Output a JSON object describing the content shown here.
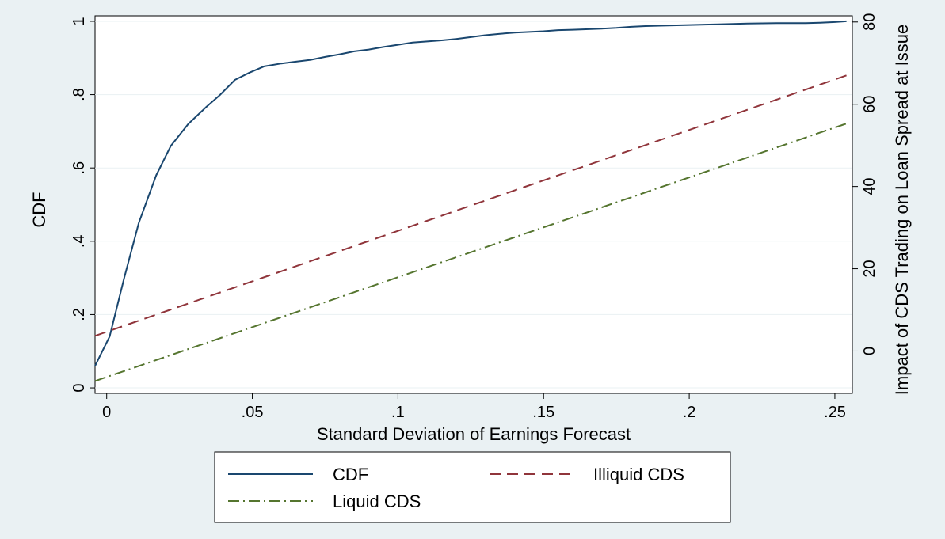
{
  "chart_data": {
    "type": "line",
    "title": "",
    "xlabel": "Standard Deviation of Earnings Forecast",
    "ylabel_left": "CDF",
    "ylabel_right": "Impact of CDS Trading on Loan Spread at Issue",
    "xlim": [
      -0.004,
      0.256
    ],
    "ylim_left": [
      -0.015,
      1.015
    ],
    "ylim_right": [
      -10.3,
      81.5
    ],
    "x_ticks": [
      0,
      0.05,
      0.1,
      0.15,
      0.2,
      0.25
    ],
    "x_tick_labels": [
      "0",
      ".05",
      ".1",
      ".15",
      ".2",
      ".25"
    ],
    "y_left_ticks": [
      0,
      0.2,
      0.4,
      0.6,
      0.8,
      1
    ],
    "y_left_tick_labels": [
      "0",
      ".2",
      ".4",
      ".6",
      ".8",
      "1"
    ],
    "y_right_ticks": [
      0,
      20,
      40,
      60,
      80
    ],
    "y_right_tick_labels": [
      "0",
      "20",
      "40",
      "60",
      "80"
    ],
    "grid": true,
    "legend_position": "bottom",
    "series": [
      {
        "name": "CDF",
        "axis": "left",
        "style": "solid",
        "color": "#1a476f",
        "x": [
          -0.004,
          0.001,
          0.006,
          0.011,
          0.017,
          0.022,
          0.028,
          0.034,
          0.039,
          0.044,
          0.049,
          0.054,
          0.06,
          0.065,
          0.07,
          0.075,
          0.08,
          0.085,
          0.09,
          0.095,
          0.1,
          0.105,
          0.11,
          0.115,
          0.12,
          0.125,
          0.13,
          0.135,
          0.14,
          0.145,
          0.15,
          0.155,
          0.16,
          0.17,
          0.175,
          0.18,
          0.185,
          0.19,
          0.2,
          0.21,
          0.22,
          0.23,
          0.24,
          0.245,
          0.25,
          0.254
        ],
        "values": [
          0.06,
          0.14,
          0.3,
          0.45,
          0.58,
          0.66,
          0.72,
          0.765,
          0.8,
          0.84,
          0.86,
          0.877,
          0.885,
          0.89,
          0.895,
          0.903,
          0.91,
          0.918,
          0.923,
          0.93,
          0.936,
          0.942,
          0.945,
          0.948,
          0.952,
          0.957,
          0.962,
          0.966,
          0.969,
          0.971,
          0.973,
          0.976,
          0.977,
          0.98,
          0.982,
          0.985,
          0.987,
          0.988,
          0.99,
          0.992,
          0.994,
          0.995,
          0.995,
          0.996,
          0.998,
          1.0
        ]
      },
      {
        "name": "Illiquid CDS",
        "axis": "right",
        "style": "dashed",
        "color": "#90353b",
        "x": [
          -0.004,
          0.254
        ],
        "values": [
          3.7,
          67
        ]
      },
      {
        "name": "Liquid CDS",
        "axis": "right",
        "style": "dashdot",
        "color": "#55752f",
        "x": [
          -0.004,
          0.254
        ],
        "values": [
          -7.3,
          55.3
        ]
      }
    ]
  }
}
